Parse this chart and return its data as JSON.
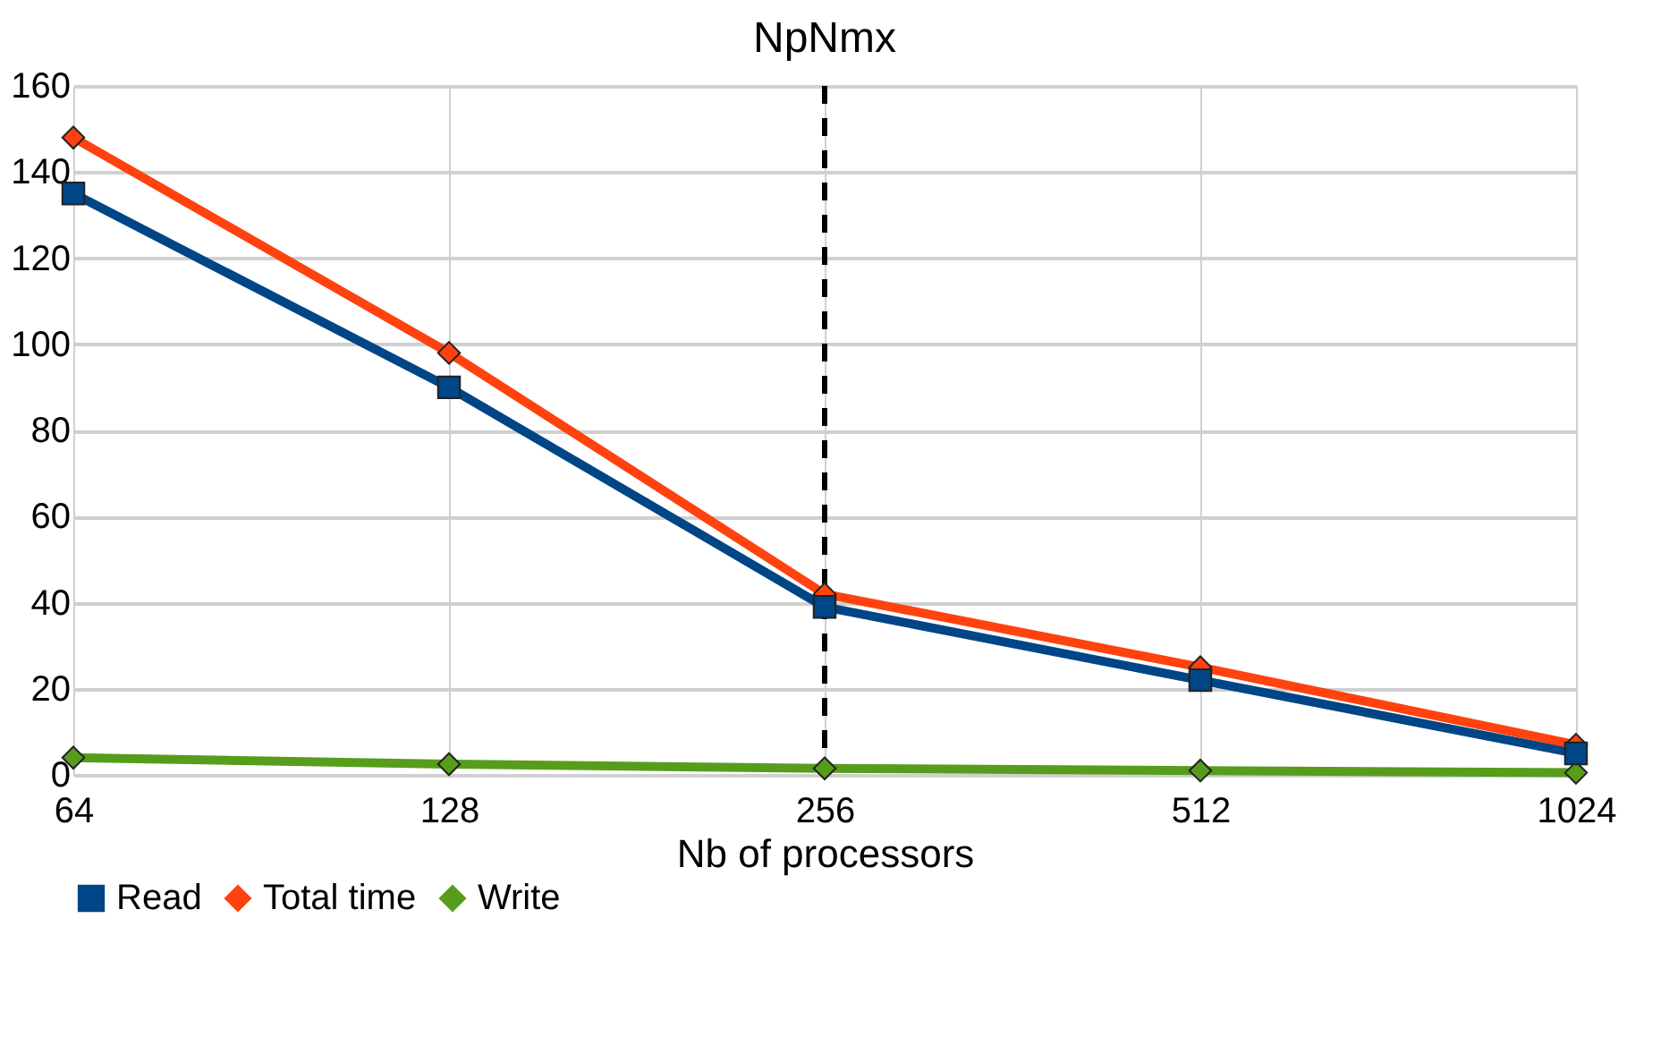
{
  "chart_data": {
    "type": "line",
    "title": "NpNmx",
    "xlabel": "Nb of processors",
    "categories": [
      "64",
      "128",
      "256",
      "512",
      "1024"
    ],
    "series": [
      {
        "name": "Read",
        "color": "#004586",
        "marker": "square",
        "values": [
          135,
          90,
          39,
          22,
          5
        ]
      },
      {
        "name": "Total time",
        "color": "#ff420e",
        "marker": "diamond",
        "values": [
          148,
          98,
          42,
          25,
          7
        ]
      },
      {
        "name": "Write",
        "color": "#579d1c",
        "marker": "diamond",
        "values": [
          4,
          2.5,
          1.5,
          1,
          0.5
        ]
      }
    ],
    "ylim": [
      0,
      160
    ],
    "yticks": [
      0,
      20,
      40,
      60,
      80,
      100,
      120,
      140,
      160
    ],
    "grid": true,
    "legend": "bottom",
    "line_style": "solid",
    "ref_lines": [
      {
        "axis": "x",
        "value": "256",
        "color": "#000000",
        "line_style": "dashed"
      }
    ]
  }
}
